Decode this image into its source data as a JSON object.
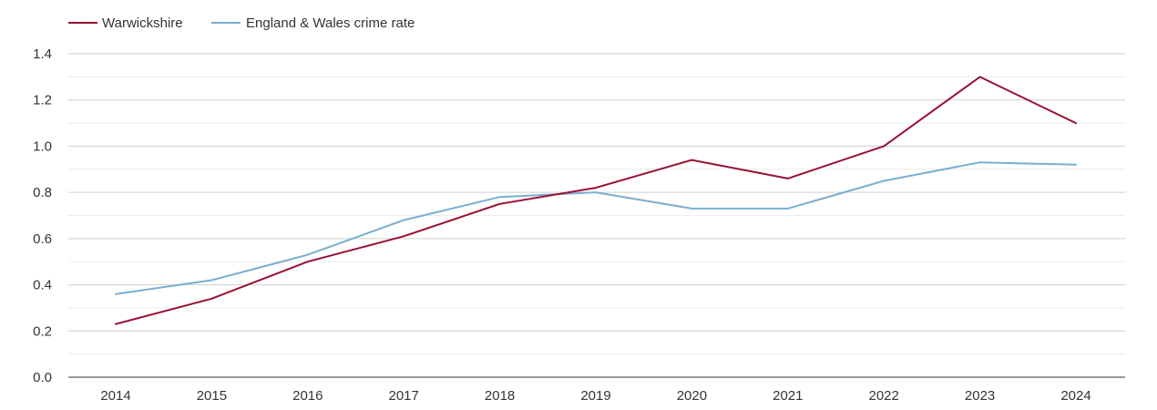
{
  "chart_data": {
    "type": "line",
    "title": "",
    "xlabel": "",
    "ylabel": "",
    "categories": [
      "2014",
      "2015",
      "2016",
      "2017",
      "2018",
      "2019",
      "2020",
      "2021",
      "2022",
      "2023",
      "2024"
    ],
    "ylim": [
      0,
      1.4
    ],
    "yticks": [
      "0.0",
      "0.2",
      "0.4",
      "0.6",
      "0.8",
      "1.0",
      "1.2",
      "1.4"
    ],
    "grid": true,
    "legend_position": "top-left",
    "series": [
      {
        "name": "Warwickshire",
        "color": "#9a0f32",
        "values": [
          0.23,
          0.34,
          0.5,
          0.61,
          0.75,
          0.82,
          0.94,
          0.86,
          1.0,
          1.3,
          1.1
        ]
      },
      {
        "name": "England & Wales crime rate",
        "color": "#7aaed0",
        "values": [
          0.36,
          0.42,
          0.53,
          0.68,
          0.78,
          0.8,
          0.73,
          0.73,
          0.85,
          0.93,
          0.92
        ]
      }
    ]
  }
}
